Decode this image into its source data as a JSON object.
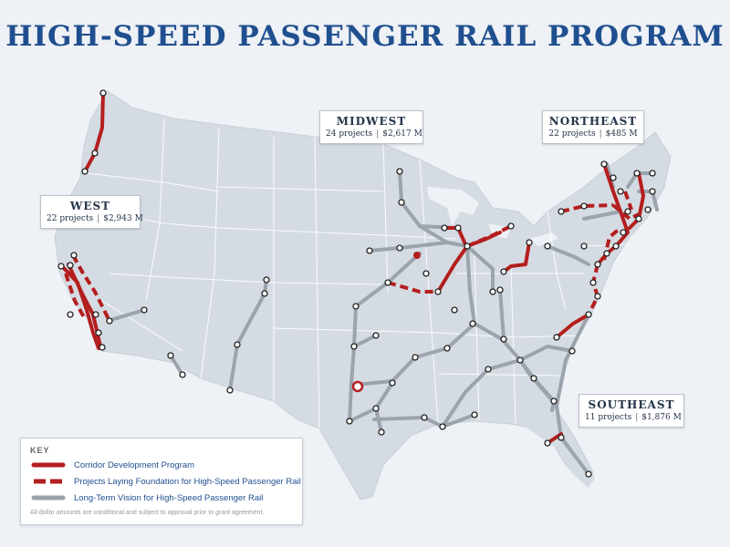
{
  "title": "HIGH-SPEED PASSENGER RAIL PROGRAM",
  "colors": {
    "title": "#1f4f8f",
    "land": "#d5dbe2",
    "state_border": "#ffffff",
    "background": "#eef1f5",
    "corridor": "#b41e1e",
    "foundation": "#b41e1e",
    "long_term": "#9ba3ac",
    "station_fill": "#ffffff",
    "station_stroke": "#222222"
  },
  "regions": [
    {
      "name": "WEST",
      "projects": "22 projects",
      "amount": "$2,943 M"
    },
    {
      "name": "MIDWEST",
      "projects": "24 projects",
      "amount": "$2,617 M"
    },
    {
      "name": "NORTHEAST",
      "projects": "22 projects",
      "amount": "$485 M"
    },
    {
      "name": "SOUTHEAST",
      "projects": "11 projects",
      "amount": "$1,876 M"
    }
  ],
  "key": {
    "title": "KEY",
    "items": [
      {
        "label": "Corridor Development Program",
        "style": "solid-red"
      },
      {
        "label": "Projects Laying Foundation for High-Speed Passenger Rail",
        "style": "dashed-red"
      },
      {
        "label": "Long-Term Vision for High-Speed Passenger Rail",
        "style": "solid-gray"
      }
    ],
    "note": "All dollar amounts are conditional and subject to approval prior to grant agreement."
  }
}
